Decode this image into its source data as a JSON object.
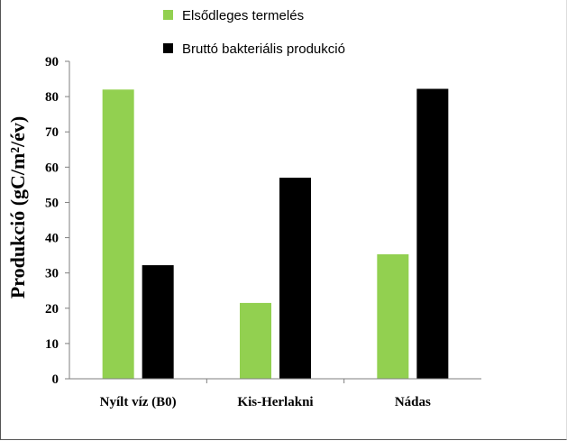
{
  "chart_data": {
    "type": "bar",
    "categories": [
      "Nyílt víz (B0)",
      "Kis-Herlakni",
      "Nádas"
    ],
    "series": [
      {
        "name": "Elsődleges termelés",
        "values": [
          82,
          21.5,
          35.3
        ],
        "color": "#92d050"
      },
      {
        "name": "Bruttó bakteriális produkció",
        "values": [
          32.2,
          57,
          82.2
        ],
        "color": "#000000"
      }
    ],
    "title": "",
    "xlabel": "",
    "ylabel": "Produkció (gC/m²/év)",
    "ylim": [
      0,
      90
    ],
    "yticks": [
      0,
      10,
      20,
      30,
      40,
      50,
      60,
      70,
      80,
      90
    ],
    "grid": false,
    "legend_position": "top"
  }
}
